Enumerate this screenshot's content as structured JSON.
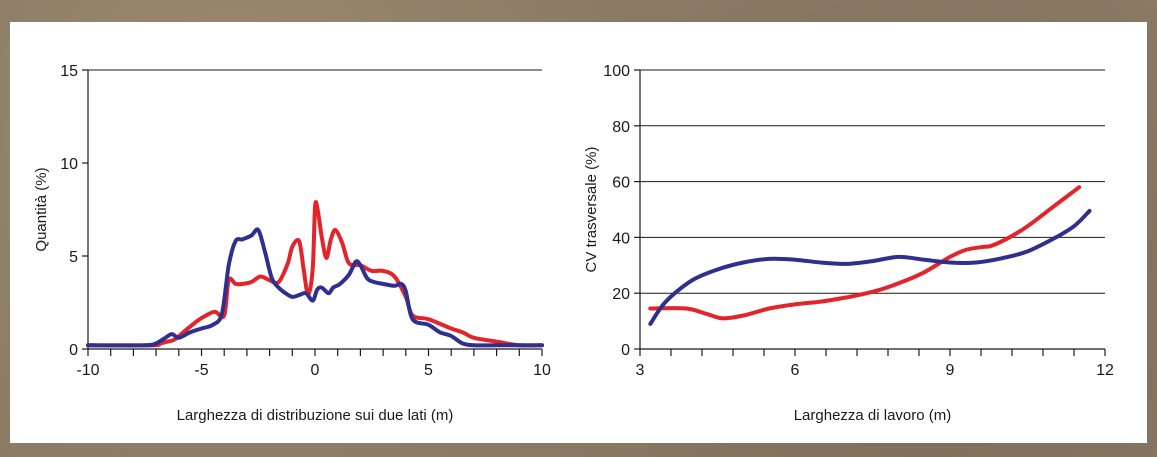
{
  "colors": {
    "background_texture": "#8b7b65",
    "panel": "#ffffff",
    "red_series": "#e3242b",
    "blue_series": "#2e2f8f",
    "axis": "#1a1a1a"
  },
  "chart_data": [
    {
      "type": "line",
      "title": "",
      "xlabel": "Larghezza di distribuzione sui due lati (m)",
      "ylabel": "Quantità (%)",
      "xlim": [
        -10,
        10
      ],
      "ylim": [
        0,
        15
      ],
      "x_ticks": [
        -10,
        -5,
        0,
        5,
        10
      ],
      "y_ticks": [
        0,
        5,
        10,
        15
      ],
      "x_minor_step": 1,
      "grid": false,
      "legend": "none",
      "series": [
        {
          "color": "#e3242b",
          "x": [
            -10,
            -7.2,
            -6.8,
            -6.5,
            -6.2,
            -5.8,
            -5.2,
            -4.8,
            -4.4,
            -4.0,
            -3.8,
            -3.5,
            -3.2,
            -2.8,
            -2.4,
            -2.0,
            -1.6,
            -1.2,
            -1.0,
            -0.7,
            -0.5,
            -0.3,
            -0.1,
            0.0,
            0.1,
            0.3,
            0.5,
            0.7,
            0.9,
            1.2,
            1.5,
            2.0,
            2.5,
            3.0,
            3.5,
            4.0,
            4.3,
            5.0,
            6.0,
            6.5,
            7.0,
            8.0,
            9.0,
            10.0
          ],
          "y": [
            0.2,
            0.2,
            0.3,
            0.4,
            0.5,
            0.9,
            1.5,
            1.8,
            2.0,
            1.8,
            3.7,
            3.5,
            3.5,
            3.6,
            3.9,
            3.7,
            3.6,
            4.6,
            5.5,
            5.8,
            4.3,
            2.9,
            4.3,
            7.6,
            7.6,
            6.0,
            4.9,
            5.9,
            6.4,
            5.7,
            4.6,
            4.5,
            4.2,
            4.2,
            3.9,
            2.8,
            1.8,
            1.6,
            1.1,
            0.9,
            0.6,
            0.4,
            0.2,
            0.2
          ]
        },
        {
          "color": "#2e2f8f",
          "x": [
            -10,
            -7.5,
            -7.0,
            -6.6,
            -6.3,
            -6.0,
            -5.5,
            -5.0,
            -4.5,
            -4.1,
            -3.8,
            -3.5,
            -3.2,
            -2.8,
            -2.5,
            -2.2,
            -1.9,
            -1.6,
            -1.3,
            -1.0,
            -0.7,
            -0.4,
            -0.1,
            0.1,
            0.3,
            0.6,
            0.8,
            1.1,
            1.5,
            1.8,
            2.0,
            2.3,
            2.6,
            3.0,
            3.5,
            3.8,
            4.0,
            4.3,
            5.0,
            5.5,
            6.0,
            6.5,
            7.0,
            8.0,
            9.0,
            10.0
          ],
          "y": [
            0.2,
            0.2,
            0.3,
            0.6,
            0.8,
            0.6,
            0.9,
            1.1,
            1.3,
            1.9,
            4.5,
            5.8,
            5.9,
            6.1,
            6.4,
            5.2,
            3.8,
            3.3,
            3.0,
            2.8,
            2.9,
            3.0,
            2.6,
            3.2,
            3.3,
            3.0,
            3.3,
            3.5,
            4.0,
            4.7,
            4.5,
            3.8,
            3.6,
            3.5,
            3.4,
            3.5,
            3.1,
            1.6,
            1.3,
            0.9,
            0.7,
            0.3,
            0.2,
            0.2,
            0.2,
            0.2
          ]
        }
      ]
    },
    {
      "type": "line",
      "title": "",
      "xlabel": "Larghezza di lavoro (m)",
      "ylabel": "CV trasversale (%)",
      "xlim": [
        3,
        12
      ],
      "ylim": [
        0,
        100
      ],
      "x_ticks": [
        3,
        6,
        9,
        12
      ],
      "y_ticks": [
        0,
        20,
        40,
        60,
        80,
        100
      ],
      "x_minor_step": 0.6,
      "grid": true,
      "legend": "none",
      "series": [
        {
          "color": "#e3242b",
          "x": [
            3.2,
            3.9,
            4.3,
            4.6,
            5.0,
            5.5,
            6.0,
            6.5,
            7.0,
            7.5,
            8.0,
            8.5,
            9.0,
            9.3,
            9.6,
            9.8,
            10.1,
            10.5,
            11.0,
            11.5
          ],
          "y": [
            14.5,
            14.5,
            12.5,
            11,
            12,
            14.5,
            16,
            17,
            18.5,
            20.5,
            23.5,
            27.5,
            33,
            35.5,
            36.5,
            37,
            39.5,
            44,
            51,
            58
          ]
        },
        {
          "color": "#2e2f8f",
          "x": [
            3.2,
            3.5,
            4.0,
            4.5,
            5.0,
            5.5,
            6.0,
            6.5,
            7.0,
            7.5,
            8.0,
            8.5,
            9.0,
            9.5,
            10.0,
            10.5,
            11.0,
            11.4,
            11.7
          ],
          "y": [
            9,
            17,
            24.5,
            28.5,
            31,
            32.3,
            32,
            31,
            30.5,
            31.5,
            33,
            32,
            31,
            31,
            32.5,
            35,
            39.5,
            44,
            49.5
          ]
        }
      ]
    }
  ]
}
